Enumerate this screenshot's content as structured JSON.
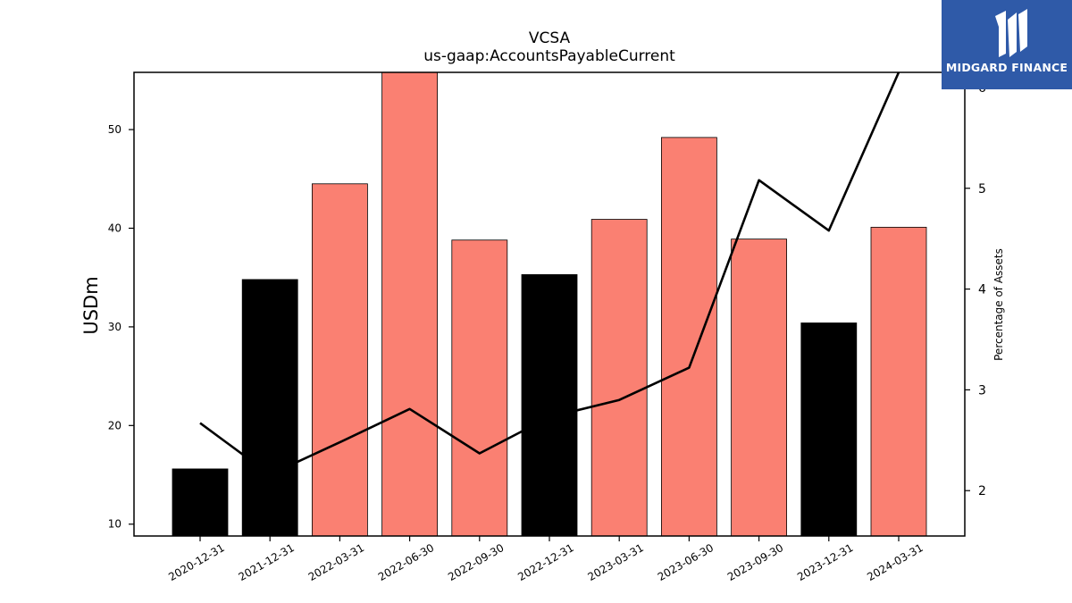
{
  "chart_data": {
    "type": "bar",
    "title": "VCSA",
    "subtitle": "us-gaap:AccountsPayableCurrent",
    "ylabel": "USDm",
    "y2label": "Percentage of Assets",
    "categories": [
      "2020-12-31",
      "2021-12-31",
      "2022-03-31",
      "2022-06-30",
      "2022-09-30",
      "2022-12-31",
      "2023-03-31",
      "2023-06-30",
      "2023-09-30",
      "2023-12-31",
      "2024-03-31"
    ],
    "series": [
      {
        "type": "bar",
        "values": [
          15.6,
          34.8,
          44.5,
          56.0,
          38.8,
          35.3,
          40.9,
          49.2,
          38.9,
          30.4,
          40.1
        ],
        "colors": [
          "#000000",
          "#000000",
          "#fa8072",
          "#fa8072",
          "#fa8072",
          "#000000",
          "#fa8072",
          "#fa8072",
          "#fa8072",
          "#000000",
          "#fa8072"
        ]
      },
      {
        "type": "line",
        "axis": "right",
        "color": "#000000",
        "values": [
          2.67,
          2.16,
          2.48,
          2.81,
          2.37,
          2.73,
          2.9,
          3.22,
          5.08,
          4.58,
          6.16
        ]
      }
    ],
    "ylim": [
      8.8,
      55.8
    ],
    "y2lim": [
      1.55,
      6.15
    ],
    "yticks": [
      10,
      20,
      30,
      40,
      50
    ],
    "y2ticks": [
      2,
      3,
      4,
      5,
      6
    ],
    "grid": false
  },
  "logo": {
    "text": "MIDGARD FINANCE",
    "icon": "midgard-logo-icon",
    "background": "#2f5aa8"
  }
}
